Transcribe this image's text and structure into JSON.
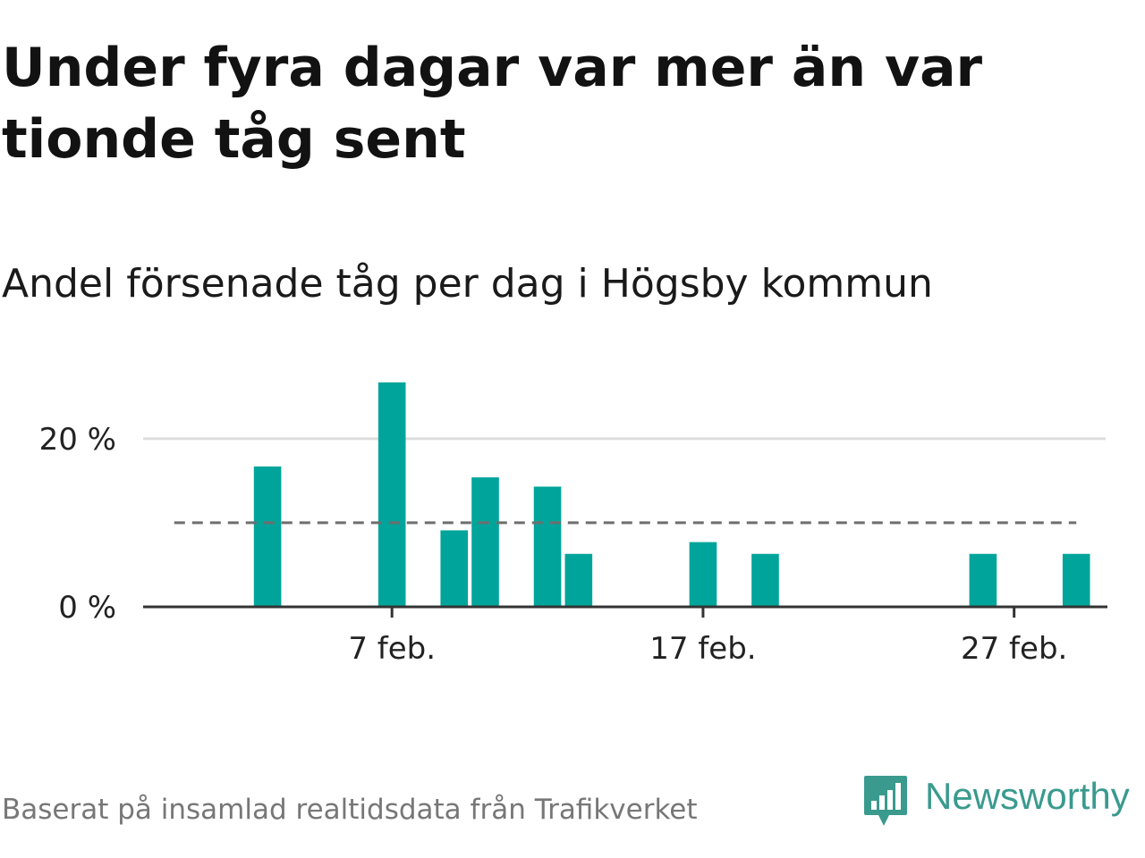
{
  "title": "Under fyra dagar var mer än var tionde tåg sent",
  "subtitle": "Andel försenade tåg per dag i Högsby kommun",
  "source": "Baserat på insamlad realtidsdata från Trafikverket",
  "logo": {
    "text": "Newsworthy",
    "icon": "newsworthy-logo-icon",
    "color": "#3a9a8e"
  },
  "colors": {
    "bar": "#00a49a",
    "reference": "#6e6e6e",
    "grid": "#dddddd",
    "axis": "#333333"
  },
  "chart_data": {
    "type": "bar",
    "x_axis": "date",
    "x_range": [
      "2024-01-30",
      "2024-03-01"
    ],
    "x_ticks": [
      {
        "date": "2024-02-07",
        "label": "7 feb."
      },
      {
        "date": "2024-02-17",
        "label": "17 feb."
      },
      {
        "date": "2024-02-27",
        "label": "27 feb."
      }
    ],
    "y_unit": "%",
    "ylim": [
      0,
      27
    ],
    "y_ticks": [
      {
        "value": 0,
        "label": "0 %"
      },
      {
        "value": 20,
        "label": "20 %"
      }
    ],
    "reference_line": {
      "value": 10,
      "style": "dashed",
      "x_from": "2024-01-31",
      "x_to": "2024-02-29"
    },
    "grid": true,
    "legend": false,
    "points": [
      {
        "x": "2024-02-03",
        "y": 16.7
      },
      {
        "x": "2024-02-07",
        "y": 26.7
      },
      {
        "x": "2024-02-09",
        "y": 9.1
      },
      {
        "x": "2024-02-10",
        "y": 15.4
      },
      {
        "x": "2024-02-12",
        "y": 14.3
      },
      {
        "x": "2024-02-13",
        "y": 6.3
      },
      {
        "x": "2024-02-17",
        "y": 7.7
      },
      {
        "x": "2024-02-19",
        "y": 6.3
      },
      {
        "x": "2024-02-26",
        "y": 6.3
      },
      {
        "x": "2024-02-29",
        "y": 6.3
      }
    ]
  }
}
